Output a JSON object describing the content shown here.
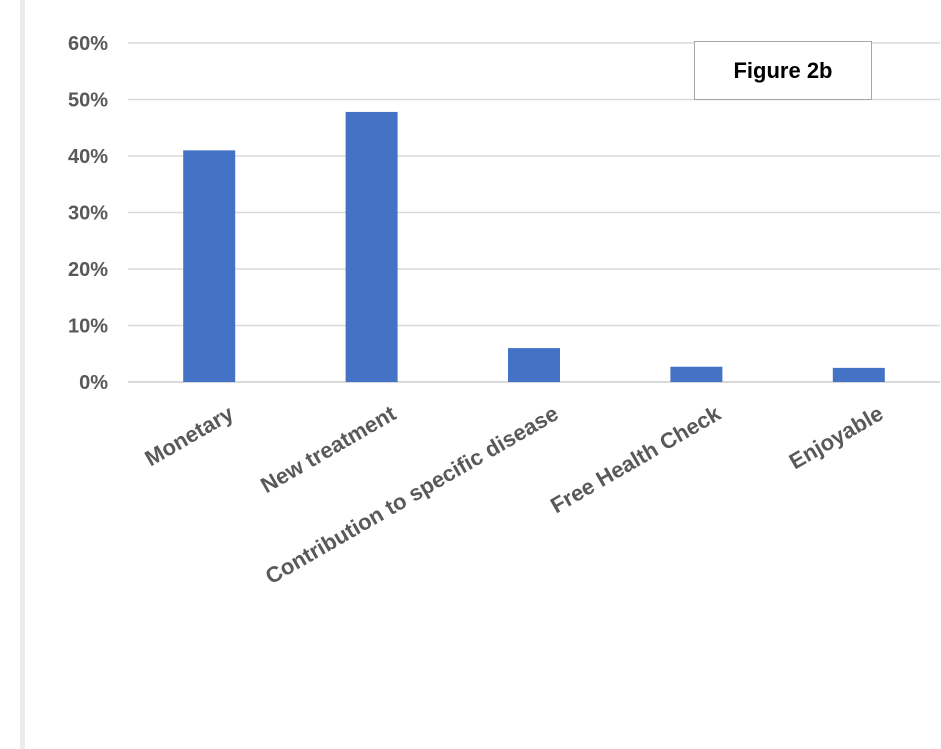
{
  "chart_data": {
    "type": "bar",
    "title": "",
    "annotation": "Figure 2b",
    "categories": [
      "Monetary",
      "New treatment",
      "Contribution to specific disease",
      "Free Health Check",
      "Enjoyable"
    ],
    "values": [
      0.41,
      0.478,
      0.06,
      0.027,
      0.025
    ],
    "yticks": [
      "0%",
      "10%",
      "20%",
      "30%",
      "40%",
      "50%",
      "60%"
    ],
    "ylim": [
      0,
      0.6
    ],
    "xlabel": "",
    "ylabel": "",
    "grid": true,
    "legend": "none",
    "bar_color": "#4472c4",
    "grid_color": "#d9d9d9"
  }
}
